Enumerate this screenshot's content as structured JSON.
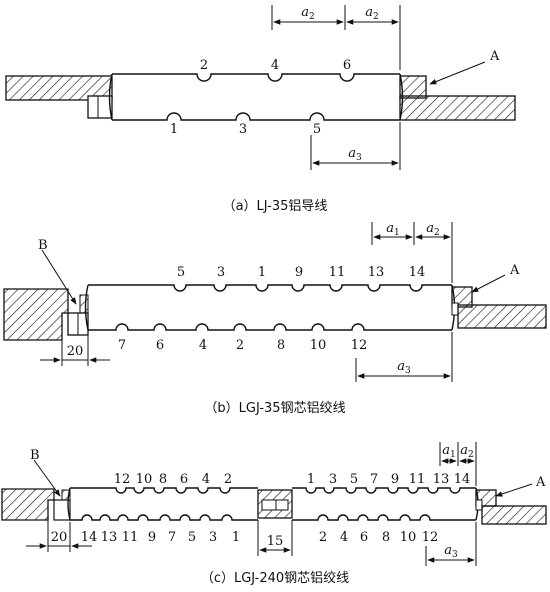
{
  "figure_a": {
    "caption": "（a）LJ-35铝导线",
    "top_numbers": [
      "2",
      "4",
      "6"
    ],
    "bottom_numbers": [
      "1",
      "3",
      "5"
    ],
    "dim_a2_left": "a2",
    "dim_a2_right": "a2",
    "dim_a3": "a3",
    "callout_A": "A"
  },
  "figure_b": {
    "caption": "（b）LGJ-35钢芯铝绞线",
    "top_numbers": [
      "5",
      "3",
      "1",
      "9",
      "11",
      "13",
      "14"
    ],
    "bottom_numbers": [
      "7",
      "6",
      "4",
      "2",
      "8",
      "10",
      "12"
    ],
    "dim_a1": "a1",
    "dim_a2": "a2",
    "dim_a3": "a3",
    "dim_20": "20",
    "callout_A": "A",
    "callout_B": "B"
  },
  "figure_c": {
    "caption": "（c）LGJ-240钢芯铝绞线",
    "left_top_numbers": [
      "12",
      "10",
      "8",
      "6",
      "4",
      "2"
    ],
    "left_bottom_numbers": [
      "14",
      "13",
      "11",
      "9",
      "7",
      "5",
      "3",
      "1"
    ],
    "right_top_numbers": [
      "1",
      "3",
      "5",
      "7",
      "9",
      "11",
      "13",
      "14"
    ],
    "right_bottom_numbers": [
      "2",
      "4",
      "6",
      "8",
      "10",
      "12"
    ],
    "dim_a1": "a1",
    "dim_a2": "a2",
    "dim_a3": "a3",
    "dim_20": "20",
    "dim_15": "15",
    "callout_A": "A",
    "callout_B": "B"
  },
  "colors": {
    "line": "#111111",
    "background": "#ffffff"
  }
}
